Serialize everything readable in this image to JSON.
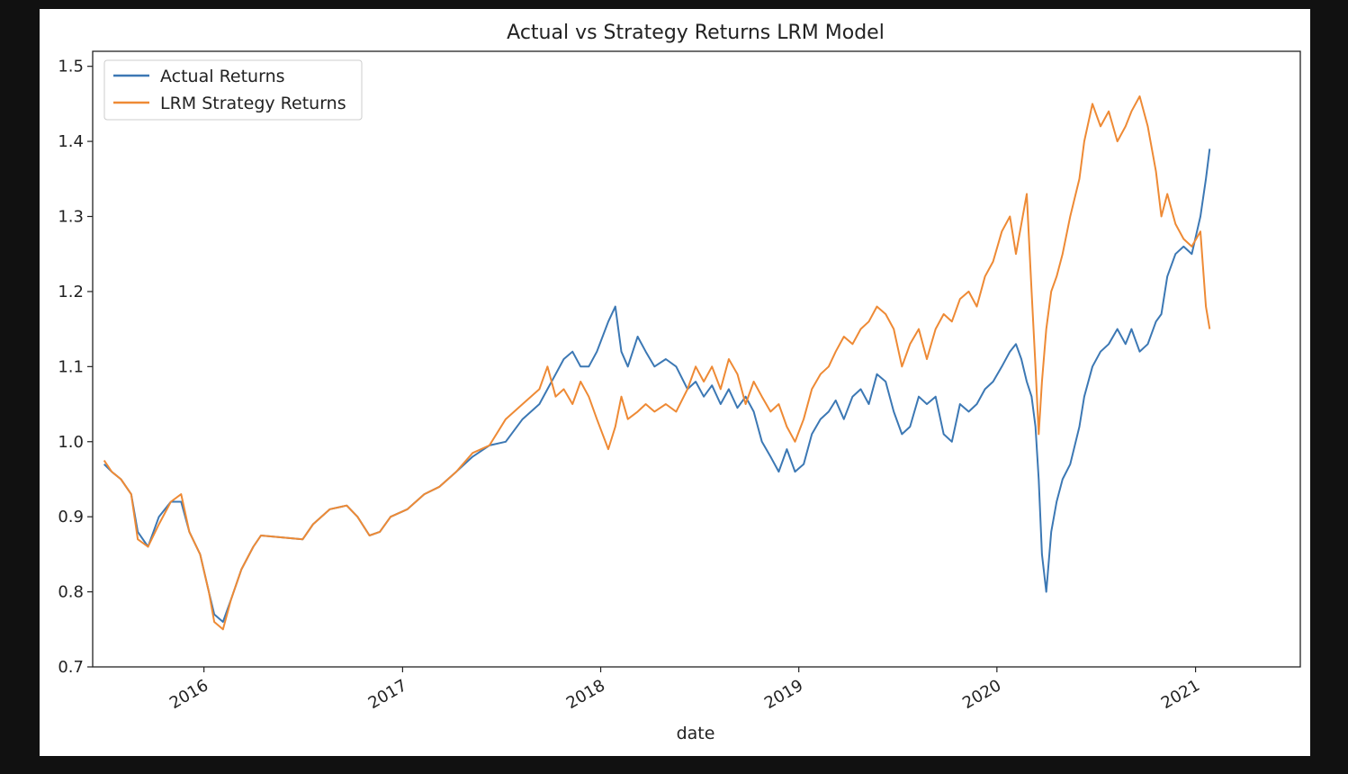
{
  "chart_data": {
    "type": "line",
    "title": "Actual vs Strategy Returns LRM Model",
    "xlabel": "date",
    "ylabel": "",
    "xlim": [
      "2015-06-10",
      "2021-07-13"
    ],
    "ylim": [
      0.7,
      1.52
    ],
    "yticks": [
      0.7,
      0.8,
      0.9,
      1.0,
      1.1,
      1.2,
      1.3,
      1.4,
      1.5
    ],
    "ytick_labels": [
      "0.7",
      "0.8",
      "0.9",
      "1.0",
      "1.1",
      "1.2",
      "1.3",
      "1.4",
      "1.5"
    ],
    "xticks": [
      "2016-01-01",
      "2017-01-01",
      "2018-01-01",
      "2019-01-01",
      "2020-01-01",
      "2021-01-01"
    ],
    "xtick_labels": [
      "2016",
      "2017",
      "2018",
      "2019",
      "2020",
      "2021"
    ],
    "grid": false,
    "legend_position": "top-left",
    "series": [
      {
        "name": "Actual Returns",
        "color": "#3c78b4",
        "x": [
          "2015-07-01",
          "2015-07-15",
          "2015-08-01",
          "2015-08-20",
          "2015-09-01",
          "2015-09-20",
          "2015-10-10",
          "2015-11-01",
          "2015-11-20",
          "2015-12-05",
          "2015-12-25",
          "2016-01-10",
          "2016-01-20",
          "2016-02-05",
          "2016-02-20",
          "2016-03-10",
          "2016-04-01",
          "2016-04-15",
          "2016-07-01",
          "2016-07-20",
          "2016-08-20",
          "2016-09-20",
          "2016-10-10",
          "2016-11-01",
          "2016-11-20",
          "2016-12-10",
          "2017-01-10",
          "2017-02-10",
          "2017-03-10",
          "2017-04-10",
          "2017-05-10",
          "2017-06-10",
          "2017-07-10",
          "2017-08-10",
          "2017-09-10",
          "2017-09-25",
          "2017-10-10",
          "2017-10-25",
          "2017-11-10",
          "2017-11-25",
          "2017-12-10",
          "2017-12-25",
          "2018-01-15",
          "2018-01-28",
          "2018-02-08",
          "2018-02-20",
          "2018-03-10",
          "2018-03-25",
          "2018-04-10",
          "2018-05-01",
          "2018-05-20",
          "2018-06-10",
          "2018-06-25",
          "2018-07-10",
          "2018-07-25",
          "2018-08-10",
          "2018-08-25",
          "2018-09-10",
          "2018-09-25",
          "2018-10-10",
          "2018-10-25",
          "2018-11-10",
          "2018-11-25",
          "2018-12-10",
          "2018-12-25",
          "2019-01-10",
          "2019-01-25",
          "2019-02-10",
          "2019-02-25",
          "2019-03-10",
          "2019-03-25",
          "2019-04-10",
          "2019-04-25",
          "2019-05-10",
          "2019-05-25",
          "2019-06-10",
          "2019-06-25",
          "2019-07-10",
          "2019-07-25",
          "2019-08-10",
          "2019-08-25",
          "2019-09-10",
          "2019-09-25",
          "2019-10-10",
          "2019-10-25",
          "2019-11-10",
          "2019-11-25",
          "2019-12-10",
          "2019-12-25",
          "2020-01-10",
          "2020-01-25",
          "2020-02-05",
          "2020-02-15",
          "2020-02-25",
          "2020-03-05",
          "2020-03-12",
          "2020-03-18",
          "2020-03-24",
          "2020-04-01",
          "2020-04-10",
          "2020-04-20",
          "2020-05-01",
          "2020-05-15",
          "2020-06-01",
          "2020-06-10",
          "2020-06-25",
          "2020-07-10",
          "2020-07-25",
          "2020-08-10",
          "2020-08-25",
          "2020-09-05",
          "2020-09-20",
          "2020-10-05",
          "2020-10-20",
          "2020-10-30",
          "2020-11-10",
          "2020-11-25",
          "2020-12-10",
          "2020-12-25",
          "2021-01-10",
          "2021-01-20",
          "2021-01-27"
        ],
        "y": [
          0.97,
          0.96,
          0.95,
          0.93,
          0.88,
          0.86,
          0.9,
          0.92,
          0.92,
          0.88,
          0.85,
          0.8,
          0.77,
          0.76,
          0.79,
          0.83,
          0.86,
          0.875,
          0.87,
          0.89,
          0.91,
          0.915,
          0.9,
          0.875,
          0.88,
          0.9,
          0.91,
          0.93,
          0.94,
          0.96,
          0.98,
          0.995,
          1.0,
          1.03,
          1.05,
          1.07,
          1.09,
          1.11,
          1.12,
          1.1,
          1.1,
          1.12,
          1.16,
          1.18,
          1.12,
          1.1,
          1.14,
          1.12,
          1.1,
          1.11,
          1.1,
          1.07,
          1.08,
          1.06,
          1.075,
          1.05,
          1.07,
          1.045,
          1.06,
          1.04,
          1.0,
          0.98,
          0.96,
          0.99,
          0.96,
          0.97,
          1.01,
          1.03,
          1.04,
          1.055,
          1.03,
          1.06,
          1.07,
          1.05,
          1.09,
          1.08,
          1.04,
          1.01,
          1.02,
          1.06,
          1.05,
          1.06,
          1.01,
          1.0,
          1.05,
          1.04,
          1.05,
          1.07,
          1.08,
          1.1,
          1.12,
          1.13,
          1.11,
          1.08,
          1.06,
          1.02,
          0.95,
          0.85,
          0.8,
          0.88,
          0.92,
          0.95,
          0.97,
          1.02,
          1.06,
          1.1,
          1.12,
          1.13,
          1.15,
          1.13,
          1.15,
          1.12,
          1.13,
          1.16,
          1.17,
          1.22,
          1.25,
          1.26,
          1.25,
          1.3,
          1.35,
          1.39
        ]
      },
      {
        "name": "LRM Strategy Returns",
        "color": "#ee8a35",
        "x": [
          "2015-07-01",
          "2015-07-15",
          "2015-08-01",
          "2015-08-20",
          "2015-09-01",
          "2015-09-20",
          "2015-10-10",
          "2015-11-01",
          "2015-11-20",
          "2015-12-05",
          "2015-12-25",
          "2016-01-10",
          "2016-01-20",
          "2016-02-05",
          "2016-02-20",
          "2016-03-10",
          "2016-04-01",
          "2016-04-15",
          "2016-07-01",
          "2016-07-20",
          "2016-08-20",
          "2016-09-20",
          "2016-10-10",
          "2016-11-01",
          "2016-11-20",
          "2016-12-10",
          "2017-01-10",
          "2017-02-10",
          "2017-03-10",
          "2017-04-10",
          "2017-05-10",
          "2017-06-10",
          "2017-07-10",
          "2017-08-10",
          "2017-09-10",
          "2017-09-25",
          "2017-10-10",
          "2017-10-25",
          "2017-11-10",
          "2017-11-25",
          "2017-12-10",
          "2017-12-25",
          "2018-01-15",
          "2018-01-28",
          "2018-02-08",
          "2018-02-20",
          "2018-03-10",
          "2018-03-25",
          "2018-04-10",
          "2018-05-01",
          "2018-05-20",
          "2018-06-10",
          "2018-06-25",
          "2018-07-10",
          "2018-07-25",
          "2018-08-10",
          "2018-08-25",
          "2018-09-10",
          "2018-09-25",
          "2018-10-10",
          "2018-10-25",
          "2018-11-10",
          "2018-11-25",
          "2018-12-10",
          "2018-12-25",
          "2019-01-10",
          "2019-01-25",
          "2019-02-10",
          "2019-02-25",
          "2019-03-10",
          "2019-03-25",
          "2019-04-10",
          "2019-04-25",
          "2019-05-10",
          "2019-05-25",
          "2019-06-10",
          "2019-06-25",
          "2019-07-10",
          "2019-07-25",
          "2019-08-10",
          "2019-08-25",
          "2019-09-10",
          "2019-09-25",
          "2019-10-10",
          "2019-10-25",
          "2019-11-10",
          "2019-11-25",
          "2019-12-10",
          "2019-12-25",
          "2020-01-10",
          "2020-01-25",
          "2020-02-05",
          "2020-02-15",
          "2020-02-25",
          "2020-03-05",
          "2020-03-12",
          "2020-03-18",
          "2020-03-24",
          "2020-04-01",
          "2020-04-10",
          "2020-04-20",
          "2020-05-01",
          "2020-05-15",
          "2020-06-01",
          "2020-06-10",
          "2020-06-25",
          "2020-07-10",
          "2020-07-25",
          "2020-08-10",
          "2020-08-25",
          "2020-09-05",
          "2020-09-20",
          "2020-10-05",
          "2020-10-20",
          "2020-10-30",
          "2020-11-10",
          "2020-11-25",
          "2020-12-10",
          "2020-12-25",
          "2021-01-10",
          "2021-01-20",
          "2021-01-27"
        ],
        "y": [
          0.975,
          0.96,
          0.95,
          0.93,
          0.87,
          0.86,
          0.89,
          0.92,
          0.93,
          0.88,
          0.85,
          0.8,
          0.76,
          0.75,
          0.79,
          0.83,
          0.86,
          0.875,
          0.87,
          0.89,
          0.91,
          0.915,
          0.9,
          0.875,
          0.88,
          0.9,
          0.91,
          0.93,
          0.94,
          0.96,
          0.985,
          0.995,
          1.03,
          1.05,
          1.07,
          1.1,
          1.06,
          1.07,
          1.05,
          1.08,
          1.06,
          1.03,
          0.99,
          1.02,
          1.06,
          1.03,
          1.04,
          1.05,
          1.04,
          1.05,
          1.04,
          1.07,
          1.1,
          1.08,
          1.1,
          1.07,
          1.11,
          1.09,
          1.05,
          1.08,
          1.06,
          1.04,
          1.05,
          1.02,
          1.0,
          1.03,
          1.07,
          1.09,
          1.1,
          1.12,
          1.14,
          1.13,
          1.15,
          1.16,
          1.18,
          1.17,
          1.15,
          1.1,
          1.13,
          1.15,
          1.11,
          1.15,
          1.17,
          1.16,
          1.19,
          1.2,
          1.18,
          1.22,
          1.24,
          1.28,
          1.3,
          1.25,
          1.29,
          1.33,
          1.2,
          1.1,
          1.01,
          1.08,
          1.15,
          1.2,
          1.22,
          1.25,
          1.3,
          1.35,
          1.4,
          1.45,
          1.42,
          1.44,
          1.4,
          1.42,
          1.44,
          1.46,
          1.42,
          1.36,
          1.3,
          1.33,
          1.29,
          1.27,
          1.26,
          1.28,
          1.18,
          1.15
        ]
      }
    ]
  }
}
